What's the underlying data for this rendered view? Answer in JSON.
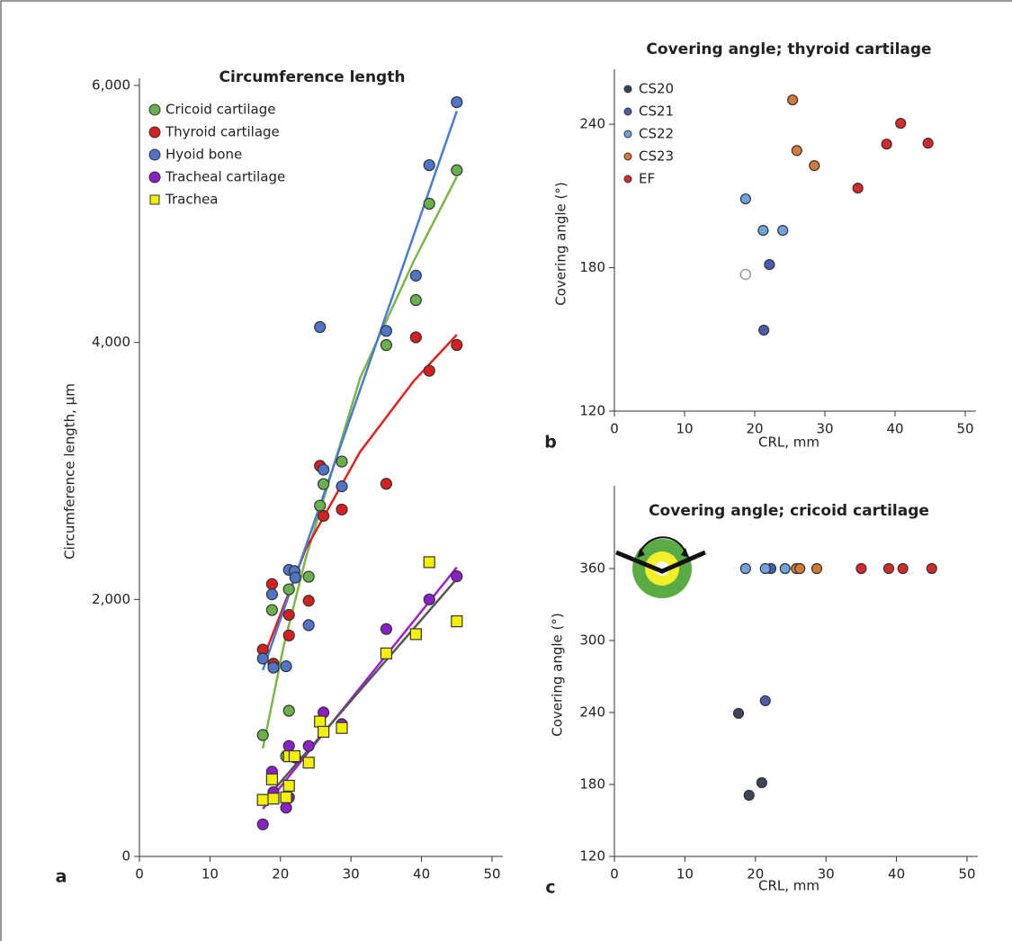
{
  "chart_data": [
    {
      "type": "scatter",
      "title": "Circumference length",
      "panel_label": "a",
      "y_label": "Circumference length, µm",
      "xlim": [
        0,
        50
      ],
      "xticks": [
        0,
        10,
        20,
        30,
        40,
        50
      ],
      "ylim": [
        0,
        6000
      ],
      "yticks": [
        0,
        {
          "value": 2000,
          "label": "2,000"
        },
        {
          "value": 4000,
          "label": "4,000"
        },
        {
          "value": 6000,
          "label": "6,000"
        }
      ],
      "series": [
        {
          "name": "Cricoid cartilage",
          "color": "#6ab04c",
          "marker": "circle",
          "x": [
            17.5,
            18.8,
            21.2,
            21.2,
            20.8,
            24.0,
            25.6,
            26.1,
            28.7,
            35,
            39.2,
            41.1,
            45
          ],
          "values": [
            945,
            1918,
            2079,
            1134,
            780,
            2177,
            2730,
            2898,
            3073,
            3980,
            4330,
            5080,
            5340
          ],
          "fit": {
            "color": "#7ab648",
            "x": [
              17.5,
              20.5,
              23.6,
              31.3,
              38.9,
              45
            ],
            "values": [
              840,
              1650,
              2324,
              3724,
              4634,
              5290
            ]
          }
        },
        {
          "name": "Thyroid cartilage",
          "color": "#d62020",
          "marker": "circle",
          "x": [
            17.5,
            18.8,
            19.0,
            21.2,
            21.2,
            24.0,
            25.6,
            26.1,
            28.7,
            35,
            39.2,
            41.1,
            45
          ],
          "values": [
            1610,
            2120,
            1500,
            1880,
            1720,
            1990,
            3040,
            2650,
            2700,
            2900,
            4040,
            3780,
            3980
          ],
          "fit": {
            "color": "#e02020",
            "x": [
              17.9,
              23.6,
              31.3,
              38.9,
              45
            ],
            "values": [
              1589,
              2394,
              3150,
              3700,
              4060
            ]
          }
        },
        {
          "name": "Hyoid bone",
          "color": "#4f74c8",
          "marker": "circle",
          "x": [
            17.5,
            18.8,
            19.0,
            20.8,
            21.2,
            22.0,
            22.1,
            24.0,
            25.6,
            26.1,
            28.7,
            35,
            39.2,
            41.1,
            45
          ],
          "values": [
            1540,
            2040,
            1470,
            1480,
            2230,
            2220,
            2170,
            1800,
            4120,
            3010,
            2880,
            4090,
            4520,
            5380,
            5870
          ],
          "fit": {
            "color": "#4a7bd0",
            "x": [
              17.5,
              45
            ],
            "values": [
              1450,
              5800
            ]
          }
        },
        {
          "name": "Tracheal cartilage",
          "color": "#8b1fc8",
          "marker": "circle",
          "x": [
            17.5,
            18.8,
            19.0,
            20.8,
            21.2,
            21.2,
            22.1,
            24.0,
            26.1,
            28.7,
            35,
            41.1,
            45
          ],
          "values": [
            250,
            660,
            500,
            380,
            860,
            460,
            770,
            860,
            1120,
            1030,
            1770,
            2000,
            2180
          ],
          "fit": {
            "color": "#9b20d0",
            "x": [
              17.5,
              45
            ],
            "values": [
              370,
              2250
            ]
          }
        },
        {
          "name": "Trachea",
          "color": "#f4f000",
          "marker": "square",
          "x": [
            17.5,
            18.8,
            19.0,
            20.8,
            21.2,
            21.2,
            22.0,
            24.0,
            25.6,
            26.1,
            28.7,
            35,
            39.2,
            41.1,
            45
          ],
          "values": [
            440,
            600,
            450,
            460,
            780,
            550,
            780,
            730,
            1050,
            970,
            1000,
            1580,
            1730,
            2290,
            1830
          ],
          "fit": {
            "color": "#555555",
            "x": [
              17.5,
              45
            ],
            "values": [
              420,
              2160
            ]
          }
        }
      ]
    },
    {
      "type": "scatter",
      "title": "Covering angle; thyroid cartilage",
      "panel_label": "b",
      "y_label": "Covering angle (°)",
      "x_label": "CRL, mm",
      "xlim": [
        0,
        50
      ],
      "xticks": [
        0,
        10,
        20,
        30,
        40,
        50
      ],
      "ylim": [
        120,
        260
      ],
      "yticks": [
        120,
        180,
        240
      ],
      "series": [
        {
          "name": "CS20",
          "color": "#3a4658",
          "marker": "circle",
          "x": [],
          "values": []
        },
        {
          "name": "CS21",
          "color": "#4a5dab",
          "marker": "circle",
          "x": [
            22.1,
            21.3
          ],
          "values": [
            181.3,
            153.9
          ]
        },
        {
          "name": "CS22",
          "color": "#6fa3dc",
          "marker": "circle",
          "x": [
            18.7,
            21.2,
            24.0,
            18.7
          ],
          "values": [
            208.8,
            195.6,
            195.6,
            177.2
          ],
          "fills": [
            "filled",
            "filled",
            "filled",
            "open"
          ]
        },
        {
          "name": "CS23",
          "color": "#d27a3a",
          "marker": "circle",
          "x": [
            25.4,
            26.0,
            28.5
          ],
          "values": [
            250.2,
            229,
            222.7
          ]
        },
        {
          "name": "EF",
          "color": "#d42a2a",
          "marker": "circle",
          "x": [
            34.7,
            38.8,
            40.8,
            44.7
          ],
          "values": [
            213.3,
            231.7,
            240.4,
            232.1
          ]
        }
      ]
    },
    {
      "type": "scatter",
      "title": "Covering angle; cricoid cartilage",
      "panel_label": "c",
      "y_label": "Covering angle (°)",
      "x_label": "CRL, mm",
      "xlim": [
        0,
        50
      ],
      "xticks": [
        0,
        10,
        20,
        30,
        40,
        50
      ],
      "ylim": [
        120,
        423
      ],
      "yticks": [
        120,
        180,
        240,
        300,
        360
      ],
      "series": [
        {
          "color": "#3a4658",
          "marker": "circle",
          "x": [
            17.6,
            19.1,
            20.9
          ],
          "values": [
            239.3,
            171,
            181.5
          ]
        },
        {
          "color": "#4a5dab",
          "marker": "circle",
          "x": [
            22.2,
            21.4
          ],
          "values": [
            360,
            249.8
          ]
        },
        {
          "color": "#6fa3dc",
          "marker": "circle",
          "x": [
            18.6,
            21.4,
            24.2
          ],
          "values": [
            360,
            360,
            360
          ]
        },
        {
          "color": "#d27a3a",
          "marker": "circle",
          "x": [
            25.8,
            26.3,
            28.7
          ],
          "values": [
            360,
            360,
            360
          ]
        },
        {
          "color": "#d42a2a",
          "marker": "circle",
          "x": [
            35.0,
            38.9,
            40.9,
            45.0
          ],
          "values": [
            360,
            360,
            360,
            360
          ]
        }
      ]
    }
  ]
}
